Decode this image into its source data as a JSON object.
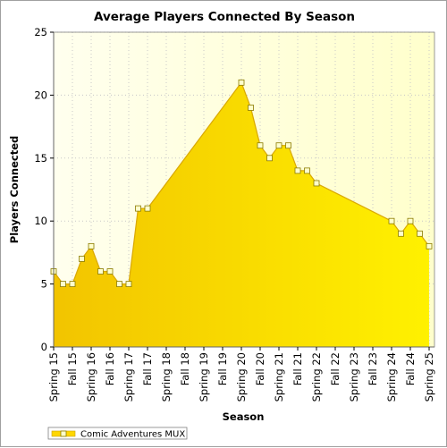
{
  "chart_data": {
    "type": "area",
    "title": "Average Players Connected By Season",
    "xlabel": "Season",
    "ylabel": "Players Connected",
    "ylim": [
      0,
      25
    ],
    "yticks": [
      0,
      5,
      10,
      15,
      20,
      25
    ],
    "categories": [
      "Spring 15",
      "Fall 15",
      "Spring 16",
      "Fall 16",
      "Spring 17",
      "Fall 17",
      "Spring 18",
      "Fall 18",
      "Spring 19",
      "Fall 19",
      "Spring 20",
      "Fall 20",
      "Spring 21",
      "Fall 21",
      "Spring 22",
      "Fall 22",
      "Spring 23",
      "Fall 23",
      "Spring 24",
      "Fall 24",
      "Spring 25"
    ],
    "series": [
      {
        "name": "Comic Adventures MUX",
        "color": "#ffd700",
        "points": [
          {
            "x": 0,
            "y": 6
          },
          {
            "x": 0.5,
            "y": 5
          },
          {
            "x": 1,
            "y": 5
          },
          {
            "x": 1.5,
            "y": 7
          },
          {
            "x": 2,
            "y": 8
          },
          {
            "x": 2.5,
            "y": 6
          },
          {
            "x": 3,
            "y": 6
          },
          {
            "x": 3.5,
            "y": 5
          },
          {
            "x": 4,
            "y": 5
          },
          {
            "x": 4.5,
            "y": 11
          },
          {
            "x": 5,
            "y": 11
          },
          {
            "x": 10,
            "y": 21
          },
          {
            "x": 10.5,
            "y": 19
          },
          {
            "x": 11,
            "y": 16
          },
          {
            "x": 11.5,
            "y": 15
          },
          {
            "x": 12,
            "y": 16
          },
          {
            "x": 12.5,
            "y": 16
          },
          {
            "x": 13,
            "y": 14
          },
          {
            "x": 13.5,
            "y": 14
          },
          {
            "x": 14,
            "y": 13
          },
          {
            "x": 18,
            "y": 10
          },
          {
            "x": 18.5,
            "y": 9
          },
          {
            "x": 19,
            "y": 10
          },
          {
            "x": 19.5,
            "y": 9
          },
          {
            "x": 20,
            "y": 8
          }
        ]
      }
    ],
    "grid": true,
    "legend_position": "bottom-left",
    "plot_background": "#ffffe0",
    "grid_color": "#c8c8c8"
  }
}
